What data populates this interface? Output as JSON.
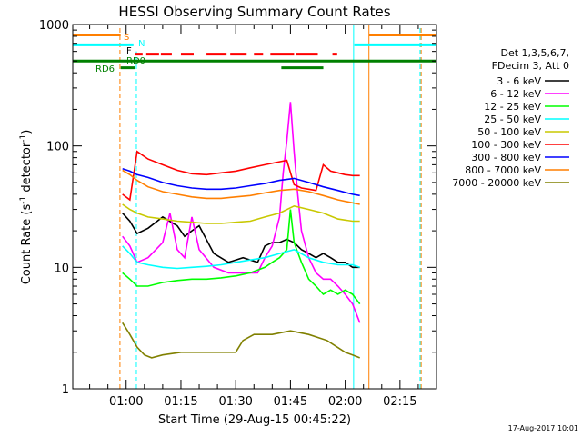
{
  "chart_data": {
    "type": "line",
    "title": "HESSI Observing Summary Count Rates",
    "xlabel": "Start Time (29-Aug-15 00:45:22)",
    "ylabel_main": "Count Rate (s",
    "ylabel_sup1": "-1",
    "ylabel_mid": " detector",
    "ylabel_sup2": "-1",
    "ylabel_end": ")",
    "ylabel": "Count Rate (s-1 detector-1)",
    "yscale": "log",
    "ylim": [
      1,
      1000
    ],
    "xlim_minutes": [
      45.37,
      145.0
    ],
    "x_ticks": [
      {
        "label": "01:00",
        "minute": 60
      },
      {
        "label": "01:15",
        "minute": 75
      },
      {
        "label": "01:30",
        "minute": 90
      },
      {
        "label": "01:45",
        "minute": 105
      },
      {
        "label": "02:00",
        "minute": 120
      },
      {
        "label": "02:15",
        "minute": 135
      }
    ],
    "y_ticks": [
      {
        "label": "1",
        "value": 1
      },
      {
        "label": "10",
        "value": 10
      },
      {
        "label": "100",
        "value": 100
      },
      {
        "label": "1000",
        "value": 1000
      }
    ],
    "legend_header": [
      "Det 1,3,5,6,7,",
      "FDecim 3, Att 0"
    ],
    "legend_placement": "right",
    "timestamp": "17-Aug-2017 10:01",
    "flags": [
      {
        "label": "S",
        "color": "#ff7f00",
        "y": 820,
        "segments": [
          [
            45.37,
            58.5
          ],
          [
            126.5,
            145
          ]
        ]
      },
      {
        "label": "N",
        "color": "#00ffff",
        "y": 680,
        "segments": [
          [
            45.37,
            62.0
          ],
          [
            122.5,
            145
          ]
        ]
      },
      {
        "label": "F",
        "color": "#ff0000",
        "y": 570,
        "segments": [
          [
            62.5,
            64.5
          ],
          [
            65.5,
            69.0
          ],
          [
            69.5,
            72.5
          ],
          [
            75.0,
            78.5
          ],
          [
            82.0,
            87.5
          ],
          [
            88.5,
            93.0
          ],
          [
            95.0,
            97.5
          ],
          [
            99.5,
            106.0
          ],
          [
            106.5,
            112.5
          ],
          [
            116.5,
            117.8
          ]
        ]
      },
      {
        "label": "RD0",
        "color": "#008000",
        "y": 500,
        "segments": [
          [
            45.37,
            145
          ]
        ]
      },
      {
        "label": "RD6",
        "color": "#008000",
        "y": 440,
        "segments": [
          [
            58.5,
            62.5
          ],
          [
            102.5,
            114.0
          ]
        ]
      }
    ],
    "vlines": [
      {
        "minute": 58.3,
        "color": "#ff7f00",
        "style": "dash",
        "y_from": 1,
        "y_to": 1000
      },
      {
        "minute": 62.8,
        "color": "#00ffff",
        "style": "dash",
        "y_from": 1,
        "y_to": 600
      },
      {
        "minute": 122.3,
        "color": "#00ffff",
        "style": "solid",
        "y_from": 1,
        "y_to": 1000
      },
      {
        "minute": 126.5,
        "color": "#ff7f00",
        "style": "solid",
        "y_from": 1,
        "y_to": 1000
      },
      {
        "minute": 140.5,
        "color": "#00ffff",
        "style": "dash",
        "y_from": 1,
        "y_to": 1000
      },
      {
        "minute": 140.8,
        "color": "#ff7f00",
        "style": "dash",
        "y_from": 1,
        "y_to": 1000
      }
    ],
    "series": [
      {
        "name": "3 - 6 keV",
        "color": "#000000",
        "x": [
          59,
          61,
          63,
          66,
          70,
          74,
          76,
          78,
          80,
          84,
          88,
          92,
          96,
          98,
          100,
          102,
          104,
          106,
          108,
          110,
          112,
          114,
          116,
          118,
          120,
          122,
          124
        ],
        "y": [
          28,
          24,
          19,
          21,
          26,
          22,
          18,
          20,
          22,
          13,
          11,
          12,
          11,
          15,
          16,
          16,
          17,
          16,
          14,
          13,
          12,
          13,
          12,
          11,
          11,
          10,
          10
        ]
      },
      {
        "name": "6 - 12 keV",
        "color": "#ff00ff",
        "x": [
          59,
          61,
          63,
          66,
          70,
          72,
          74,
          76,
          78,
          80,
          84,
          88,
          92,
          96,
          98,
          100,
          102,
          103,
          104,
          105,
          106,
          107,
          108,
          110,
          112,
          114,
          116,
          118,
          120,
          122,
          124
        ],
        "y": [
          18,
          15,
          11,
          12,
          16,
          28,
          14,
          12,
          26,
          14,
          10,
          9,
          9,
          9,
          12,
          15,
          26,
          60,
          110,
          230,
          90,
          40,
          20,
          12,
          9,
          8,
          8,
          7,
          6,
          5,
          3.5
        ]
      },
      {
        "name": "12 - 25 keV",
        "color": "#00ff00",
        "x": [
          59,
          61,
          63,
          66,
          70,
          74,
          78,
          82,
          86,
          90,
          94,
          98,
          100,
          102,
          104,
          105,
          106,
          108,
          110,
          112,
          114,
          116,
          118,
          120,
          122,
          124
        ],
        "y": [
          9,
          8,
          7,
          7,
          7.5,
          7.8,
          8,
          8,
          8.2,
          8.5,
          9,
          10,
          11,
          12,
          14,
          30,
          16,
          11,
          8,
          7,
          6,
          6.5,
          6,
          6.5,
          6,
          5
        ]
      },
      {
        "name": "25 - 50 keV",
        "color": "#00ffff",
        "x": [
          59,
          61,
          63,
          66,
          70,
          74,
          78,
          82,
          86,
          90,
          94,
          98,
          102,
          106,
          110,
          114,
          118,
          122,
          124
        ],
        "y": [
          15,
          13,
          11,
          10.5,
          10,
          9.8,
          10,
          10.2,
          10.5,
          11,
          11.5,
          12,
          13,
          14,
          12,
          11,
          10.5,
          10.5,
          10
        ]
      },
      {
        "name": "50 - 100 keV",
        "color": "#c8c800",
        "x": [
          59,
          61,
          63,
          66,
          70,
          74,
          78,
          82,
          86,
          90,
          94,
          98,
          102,
          106,
          110,
          114,
          118,
          122,
          124
        ],
        "y": [
          33,
          30,
          28,
          26,
          25,
          24,
          23.5,
          23,
          23,
          23.5,
          24,
          26,
          28,
          32,
          30,
          28,
          25,
          24,
          24
        ]
      },
      {
        "name": "100 - 300 keV",
        "color": "#ff0000",
        "x": [
          59,
          61,
          63,
          66,
          70,
          74,
          78,
          82,
          86,
          90,
          94,
          98,
          102,
          104,
          106,
          108,
          110,
          112,
          114,
          116,
          118,
          120,
          122,
          124
        ],
        "y": [
          40,
          36,
          90,
          78,
          70,
          63,
          59,
          58,
          60,
          62,
          66,
          70,
          74,
          76,
          48,
          45,
          44,
          43,
          70,
          62,
          60,
          58,
          57,
          57
        ]
      },
      {
        "name": "300 - 800 keV",
        "color": "#0000ff",
        "x": [
          59,
          61,
          63,
          66,
          70,
          74,
          78,
          82,
          86,
          90,
          94,
          98,
          102,
          106,
          110,
          114,
          118,
          122,
          124
        ],
        "y": [
          65,
          62,
          58,
          55,
          50,
          47,
          45,
          44,
          44,
          45,
          47,
          49,
          52,
          54,
          50,
          46,
          43,
          40,
          39
        ]
      },
      {
        "name": "800 - 7000 keV",
        "color": "#ff7f00",
        "x": [
          59,
          61,
          63,
          66,
          70,
          74,
          78,
          82,
          86,
          90,
          94,
          98,
          102,
          106,
          110,
          114,
          118,
          122,
          124
        ],
        "y": [
          63,
          58,
          52,
          46,
          42,
          40,
          38,
          37,
          37,
          38,
          39,
          41,
          43,
          44,
          42,
          39,
          36,
          34,
          33
        ]
      },
      {
        "name": "7000 - 20000 keV",
        "color": "#808000",
        "x": [
          59,
          61,
          63,
          65,
          67,
          70,
          75,
          80,
          85,
          90,
          92,
          95,
          100,
          105,
          110,
          115,
          120,
          122,
          124
        ],
        "y": [
          3.5,
          2.8,
          2.2,
          1.9,
          1.8,
          1.9,
          2.0,
          2.0,
          2.0,
          2.0,
          2.5,
          2.8,
          2.8,
          3.0,
          2.8,
          2.5,
          2.0,
          1.9,
          1.8
        ]
      }
    ]
  }
}
